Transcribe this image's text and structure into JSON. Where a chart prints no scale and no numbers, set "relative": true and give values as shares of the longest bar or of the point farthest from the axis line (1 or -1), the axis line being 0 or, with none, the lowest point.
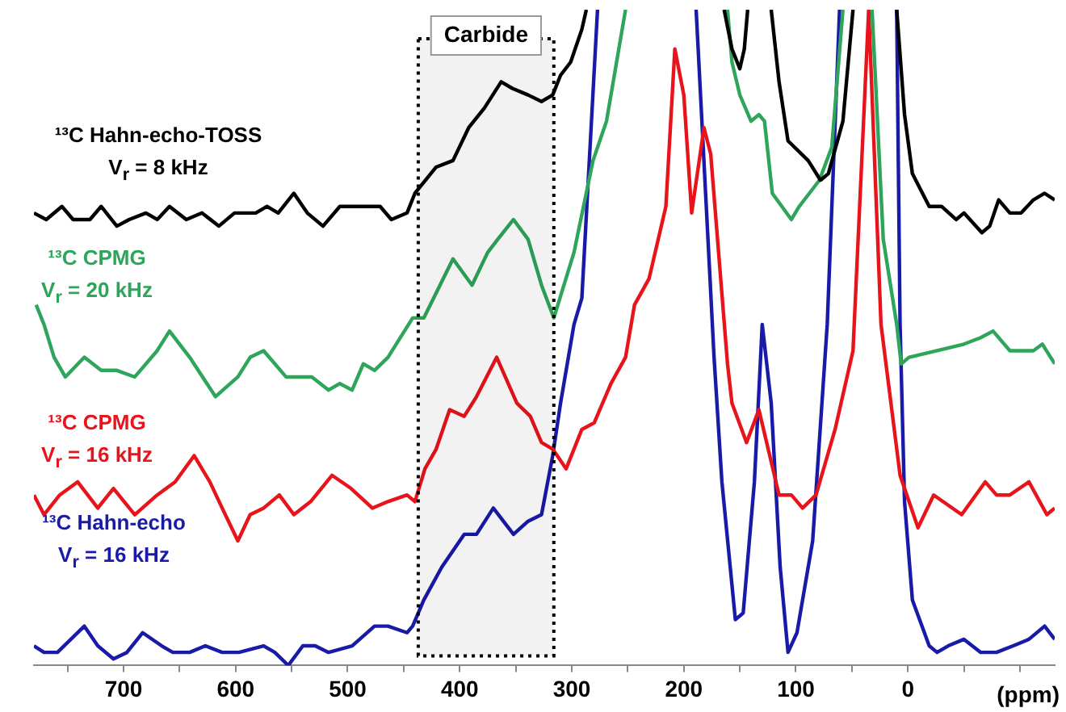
{
  "chart_data": {
    "type": "line",
    "relative": true,
    "xlabel": "(ppm)",
    "xlim": [
      780,
      -131
    ],
    "xticks": [
      {
        "value": 750,
        "label": null
      },
      700,
      {
        "value": 650,
        "label": null
      },
      600,
      {
        "value": 550,
        "label": null
      },
      500,
      {
        "value": 450,
        "label": null
      },
      400,
      {
        "value": 350,
        "label": null
      },
      300,
      {
        "value": 250,
        "label": null
      },
      200,
      {
        "value": 150,
        "label": null
      },
      100,
      {
        "value": 50,
        "label": null
      },
      0,
      {
        "value": -50,
        "label": null
      },
      {
        "value": -100,
        "label": null
      }
    ],
    "bands": [
      {
        "axis": "x",
        "from": 437,
        "to": 316,
        "label": "Carbide",
        "color": "#000000"
      }
    ],
    "series": [
      {
        "name": "¹³C Hahn-echo-TOSS\nV$_{r}$ = 8 kHz",
        "color": "#000000",
        "x": [
          780,
          769,
          755,
          745,
          730,
          720,
          706,
          695,
          680,
          670,
          659,
          644,
          630,
          615,
          601,
          582,
          572,
          562,
          548,
          536,
          522,
          507,
          496,
          481,
          471,
          461,
          447,
          440,
          421,
          406,
          392,
          378,
          363,
          353,
          339,
          327,
          317,
          310,
          301,
          291,
          287,
          220,
          164,
          157,
          150,
          146,
          143,
          130,
          122,
          115,
          107,
          89,
          78,
          71,
          58,
          49,
          30,
          10,
          3,
          -4,
          -19,
          -30,
          -43,
          -50,
          -66,
          -73,
          -81,
          -91,
          -101,
          -112,
          -122,
          -131
        ],
        "values": [
          0.69,
          0.68,
          0.7,
          0.68,
          0.68,
          0.7,
          0.67,
          0.68,
          0.69,
          0.68,
          0.7,
          0.68,
          0.69,
          0.67,
          0.69,
          0.69,
          0.7,
          0.69,
          0.72,
          0.69,
          0.67,
          0.7,
          0.7,
          0.7,
          0.7,
          0.68,
          0.69,
          0.72,
          0.76,
          0.77,
          0.82,
          0.85,
          0.89,
          0.88,
          0.87,
          0.86,
          0.87,
          0.9,
          0.92,
          0.97,
          1,
          null,
          1,
          0.94,
          0.91,
          0.94,
          1,
          null,
          1,
          0.89,
          0.8,
          0.77,
          0.74,
          0.75,
          0.83,
          1,
          null,
          1,
          0.84,
          0.75,
          0.7,
          0.7,
          0.68,
          0.69,
          0.66,
          0.67,
          0.71,
          0.69,
          0.69,
          0.71,
          0.72,
          0.71
        ]
      },
      {
        "name": "¹³C CPMG\nV$_{r}$ = 20 kHz",
        "color": "#2ea55a",
        "x": [
          778,
          771,
          762,
          752,
          735,
          720,
          706,
          690,
          670,
          659,
          641,
          618,
          598,
          587,
          575,
          555,
          532,
          517,
          507,
          496,
          486,
          476,
          464,
          442,
          432,
          406,
          389,
          375,
          366,
          352,
          339,
          327,
          316,
          298,
          281,
          269,
          252,
          200,
          161,
          157,
          150,
          140,
          133,
          128,
          121,
          104,
          97,
          79,
          68,
          58,
          45,
          32,
          22,
          10,
          6,
          -1,
          -26,
          -50,
          -65,
          -76,
          -91,
          -112,
          -120,
          -131
        ],
        "values": [
          0.55,
          0.52,
          0.47,
          0.44,
          0.47,
          0.45,
          0.45,
          0.44,
          0.48,
          0.51,
          0.47,
          0.41,
          0.44,
          0.47,
          0.48,
          0.44,
          0.44,
          0.42,
          0.43,
          0.42,
          0.46,
          0.45,
          0.47,
          0.53,
          0.53,
          0.62,
          0.58,
          0.63,
          0.65,
          0.68,
          0.65,
          0.58,
          0.53,
          0.63,
          0.77,
          0.83,
          1,
          null,
          1,
          0.92,
          0.87,
          0.83,
          0.84,
          0.83,
          0.72,
          0.68,
          0.7,
          0.74,
          0.79,
          1,
          null,
          1,
          0.65,
          0.52,
          0.46,
          0.47,
          0.48,
          0.49,
          0.5,
          0.51,
          0.48,
          0.48,
          0.49,
          0.46
        ]
      },
      {
        "name": "¹³C CPMG\nV$_{r}$ = 16 kHz",
        "color": "#e8141c",
        "x": [
          780,
          771,
          757,
          741,
          723,
          709,
          690,
          670,
          654,
          637,
          623,
          612,
          598,
          587,
          575,
          561,
          548,
          533,
          514,
          497,
          478,
          464,
          447,
          440,
          431,
          421,
          409,
          396,
          385,
          367,
          349,
          337,
          327,
          317,
          305,
          291,
          280,
          265,
          252,
          244,
          231,
          216,
          208,
          200,
          193,
          182,
          176,
          161,
          157,
          144,
          133,
          115,
          104,
          94,
          82,
          65,
          49,
          35,
          24,
          7,
          -9,
          -23,
          -48,
          -69,
          -79,
          -91,
          -108,
          -124,
          -131
        ],
        "values": [
          0.26,
          0.23,
          0.26,
          0.28,
          0.24,
          0.27,
          0.23,
          0.26,
          0.28,
          0.32,
          0.28,
          0.24,
          0.19,
          0.23,
          0.24,
          0.26,
          0.23,
          0.25,
          0.29,
          0.27,
          0.24,
          0.25,
          0.26,
          0.25,
          0.3,
          0.33,
          0.39,
          0.38,
          0.41,
          0.47,
          0.4,
          0.38,
          0.34,
          0.33,
          0.3,
          0.36,
          0.37,
          0.43,
          0.47,
          0.55,
          0.59,
          0.7,
          0.94,
          0.87,
          0.69,
          0.82,
          0.78,
          0.46,
          0.4,
          0.34,
          0.39,
          0.26,
          0.26,
          0.24,
          0.26,
          0.36,
          0.48,
          1,
          0.52,
          0.29,
          0.21,
          0.26,
          0.23,
          0.28,
          0.26,
          0.26,
          0.28,
          0.23,
          0.24
        ]
      },
      {
        "name": "¹³C Hahn-echo\nV$_{r}$ = 16 kHz",
        "color": "#1a1aa8",
        "x": [
          780,
          771,
          759,
          735,
          723,
          709,
          697,
          683,
          666,
          656,
          641,
          627,
          612,
          597,
          575,
          565,
          553,
          540,
          529,
          517,
          496,
          476,
          464,
          447,
          442,
          432,
          416,
          396,
          385,
          370,
          352,
          339,
          327,
          317,
          310,
          298,
          291,
          277,
          230,
          189,
          173,
          166,
          154,
          147,
          137,
          130,
          122,
          114,
          107,
          99,
          85,
          72,
          61,
          40,
          10,
          7,
          3,
          -4,
          -19,
          -26,
          -36,
          -50,
          -65,
          -79,
          -94,
          -108,
          -122,
          -131
        ],
        "values": [
          0.03,
          0.02,
          0.02,
          0.06,
          0.03,
          0.01,
          0.02,
          0.05,
          0.03,
          0.02,
          0.02,
          0.03,
          0.02,
          0.02,
          0.03,
          0.02,
          0,
          0.03,
          0.03,
          0.02,
          0.03,
          0.06,
          0.06,
          0.05,
          0.06,
          0.1,
          0.15,
          0.2,
          0.2,
          0.24,
          0.2,
          0.22,
          0.23,
          0.32,
          0.4,
          0.52,
          0.56,
          1,
          null,
          1,
          0.47,
          0.28,
          0.07,
          0.08,
          0.28,
          0.52,
          0.4,
          0.15,
          0.02,
          0.05,
          0.19,
          0.52,
          1,
          null,
          1,
          0.52,
          0.25,
          0.1,
          0.03,
          0.02,
          0.03,
          0.04,
          0.02,
          0.02,
          0.03,
          0.04,
          0.06,
          0.04
        ]
      }
    ]
  }
}
